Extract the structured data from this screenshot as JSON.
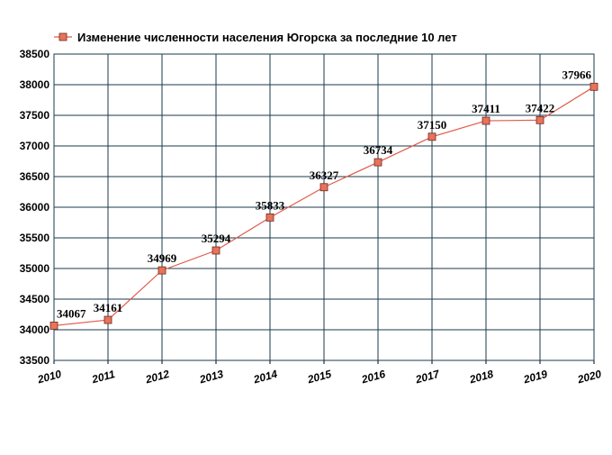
{
  "chart_data": {
    "type": "line",
    "title": "",
    "xlabel": "",
    "ylabel": "",
    "x": [
      "2010",
      "2011",
      "2012",
      "2013",
      "2014",
      "2015",
      "2016",
      "2017",
      "2018",
      "2019",
      "2020"
    ],
    "series": [
      {
        "name": "Изменение численности населения Югорска за последние 10 лет",
        "values": [
          34067,
          34161,
          34969,
          35294,
          35833,
          36327,
          36734,
          37150,
          37411,
          37422,
          37966
        ],
        "color": "#e05a4a",
        "marker_color": "#e8735a"
      }
    ],
    "ylim": [
      33500,
      38500
    ],
    "yticks": [
      33500,
      34000,
      34500,
      35000,
      35500,
      36000,
      36500,
      37000,
      37500,
      38000,
      38500
    ],
    "grid": true,
    "grid_color": "#1b3a4b",
    "legend_position": "top-left"
  }
}
